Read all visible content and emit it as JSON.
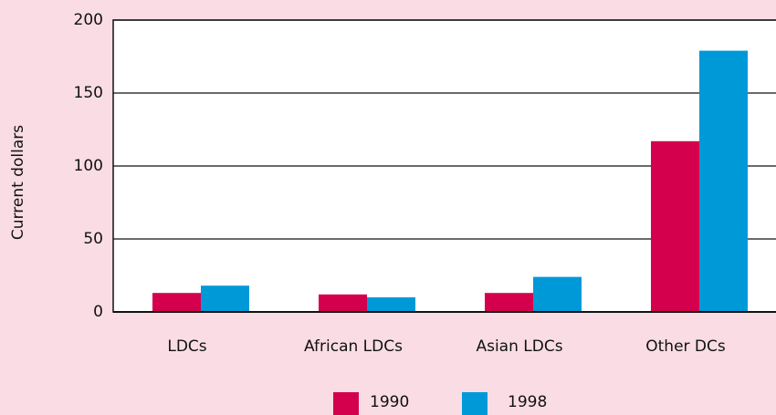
{
  "chart_data": {
    "type": "bar",
    "y_label": "Current dollars",
    "categories": [
      "LDCs",
      "African LDCs",
      "Asian LDCs",
      "Other DCs"
    ],
    "series": [
      {
        "name": "1990",
        "color": "#d4004e",
        "values": [
          13,
          12,
          13,
          117
        ]
      },
      {
        "name": "1998",
        "color": "#0099d8",
        "values": [
          18,
          10,
          24,
          179
        ]
      }
    ],
    "ylim": [
      0,
      200
    ],
    "yticks": [
      0,
      50,
      100,
      150,
      200
    ],
    "grid": true
  }
}
